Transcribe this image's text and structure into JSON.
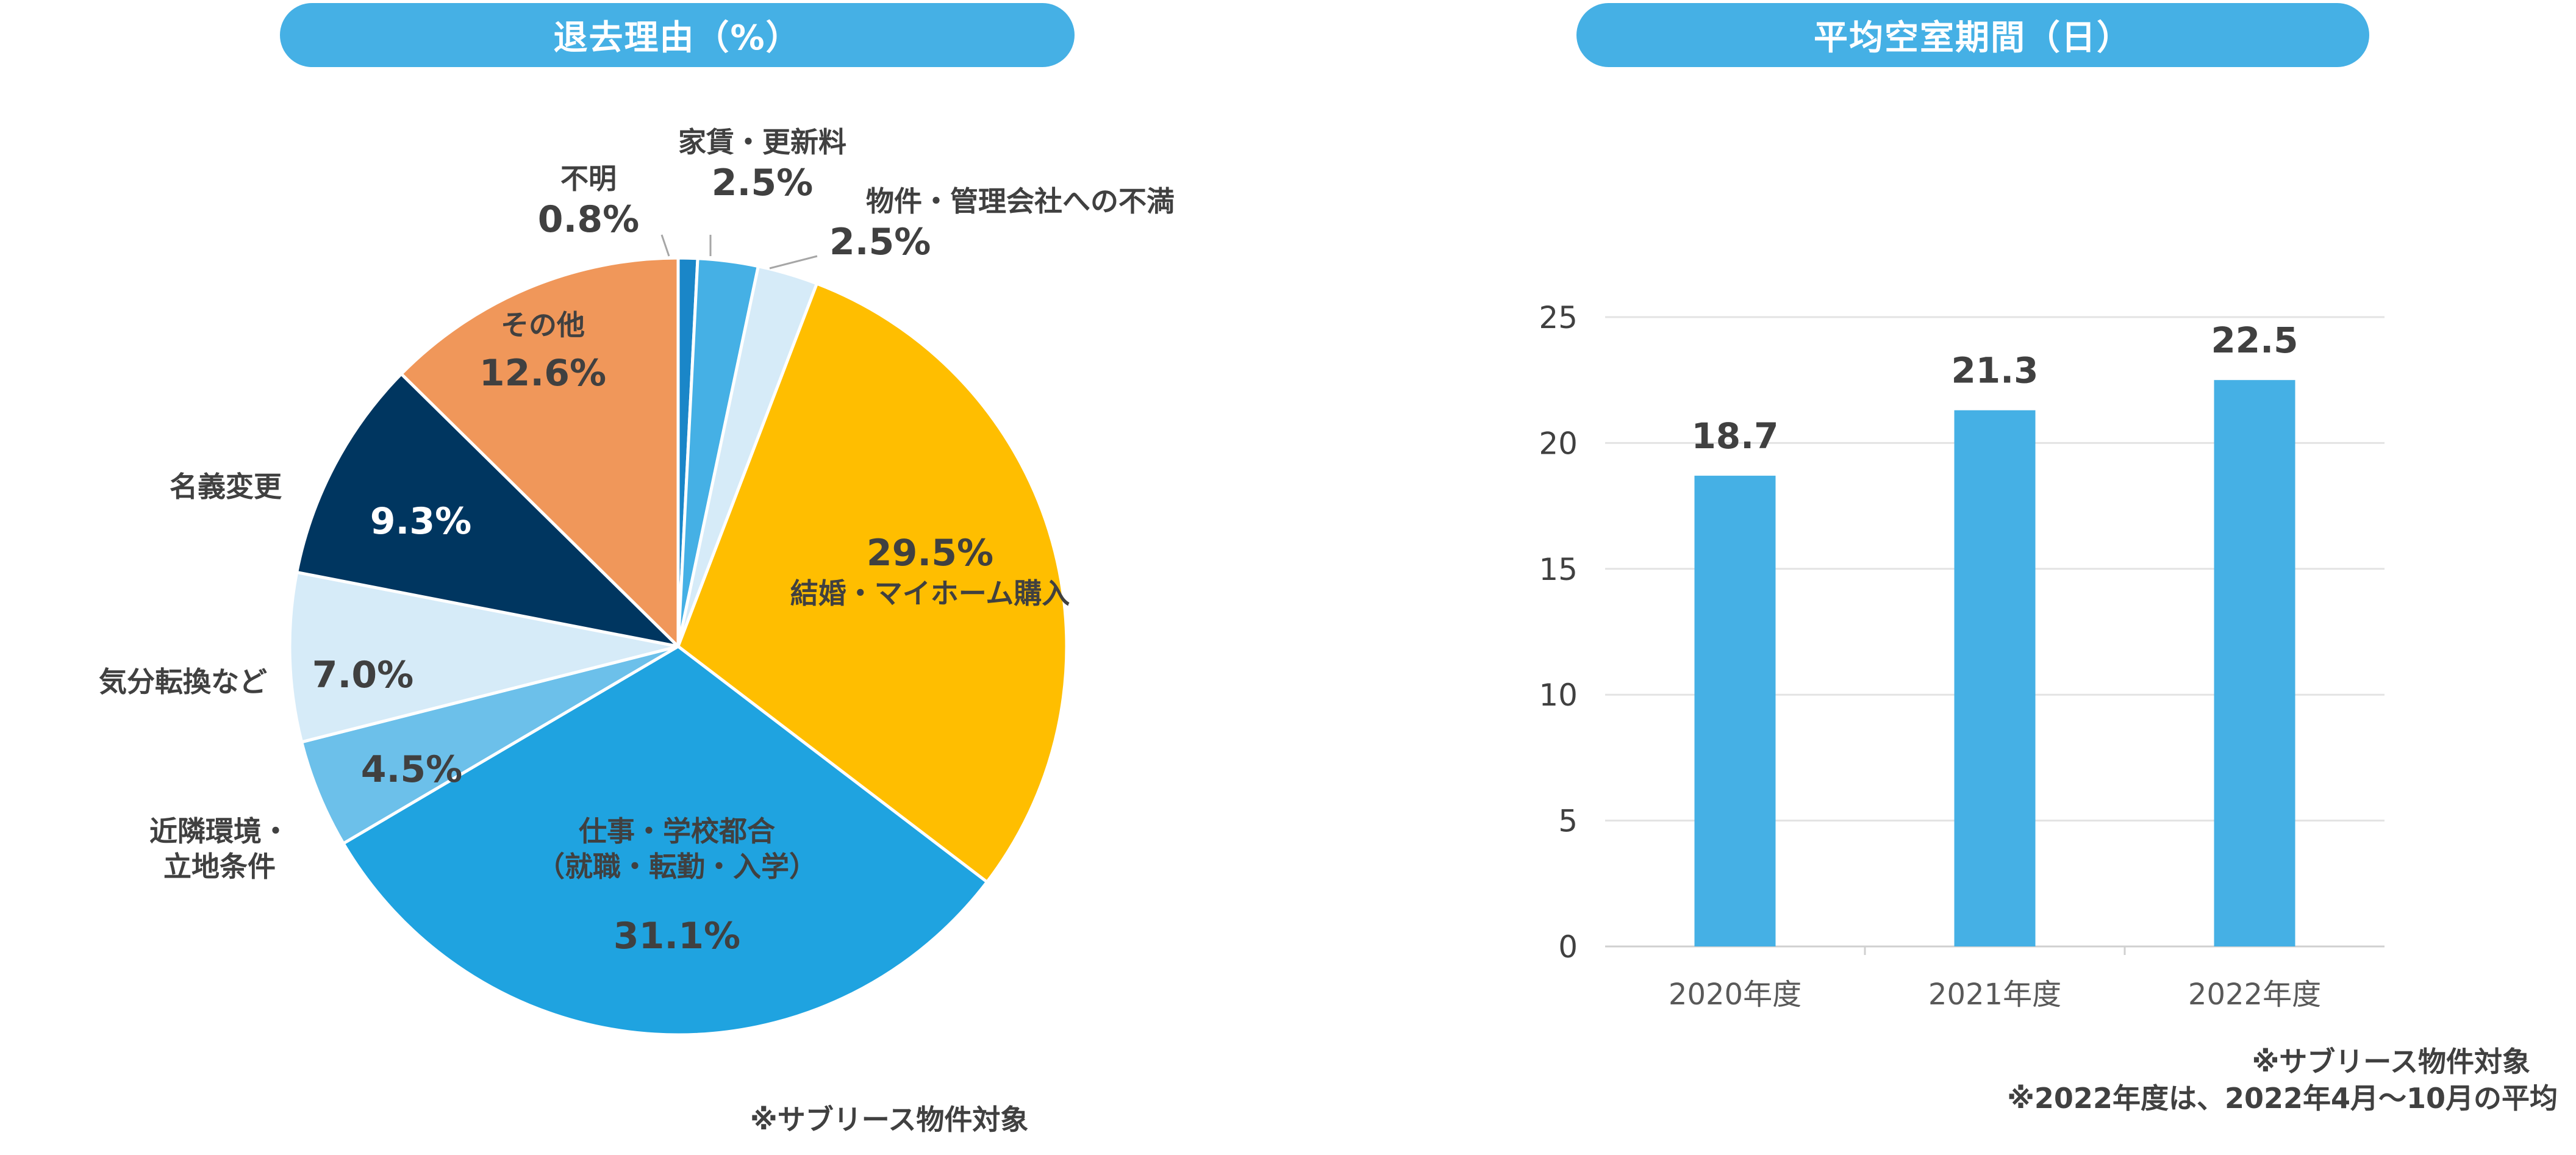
{
  "left_chart": {
    "title": "退去理由（%）",
    "note": "※サブリース物件対象",
    "colors": {
      "job": "#1fa3e0",
      "marriage": "#ffbe00",
      "other": "#f0975a",
      "name": "#003660",
      "mood": "#d6ebf8",
      "env": "#6cc0ea",
      "fee": "#45b0e5",
      "mgmt": "#d6ebf8",
      "unknown": "#1a86c8"
    }
  },
  "right_chart": {
    "title": "平均空室期間（日）",
    "notes": [
      "※サブリース物件対象",
      "※2022年度は、2022年4月～10月の平均"
    ]
  },
  "chart_data": [
    {
      "type": "pie",
      "title": "退去理由（%）",
      "unit": "%",
      "slices": [
        {
          "key": "unknown",
          "label": "不明",
          "value": 0.8,
          "display": "0.8%"
        },
        {
          "key": "fee",
          "label": "家賃・更新料",
          "value": 2.5,
          "display": "2.5%"
        },
        {
          "key": "mgmt",
          "label": "物件・管理会社への不満",
          "value": 2.5,
          "display": "2.5%"
        },
        {
          "key": "marriage",
          "label": "結婚・マイホーム購入",
          "value": 29.5,
          "display": "29.5%"
        },
        {
          "key": "job",
          "label": "仕事・学校都合（就職・転勤・入学）",
          "label_lines": [
            "仕事・学校都合",
            "（就職・転勤・入学）"
          ],
          "value": 31.1,
          "display": "31.1%"
        },
        {
          "key": "env",
          "label": "近隣環境・立地条件",
          "label_lines": [
            "近隣環境・",
            "立地条件"
          ],
          "value": 4.5,
          "display": "4.5%"
        },
        {
          "key": "mood",
          "label": "気分転換など",
          "value": 7.0,
          "display": "7.0%"
        },
        {
          "key": "name",
          "label": "名義変更",
          "value": 9.3,
          "display": "9.3%"
        },
        {
          "key": "other",
          "label": "その他",
          "value": 12.6,
          "display": "12.6%"
        }
      ]
    },
    {
      "type": "bar",
      "title": "平均空室期間（日）",
      "categories": [
        "2020年度",
        "2021年度",
        "2022年度"
      ],
      "values": [
        18.7,
        21.3,
        22.5
      ],
      "ylim": [
        0,
        25
      ],
      "yticks": [
        0,
        5,
        10,
        15,
        20,
        25
      ],
      "grid": true,
      "bar_color": "#45b0e5"
    }
  ]
}
